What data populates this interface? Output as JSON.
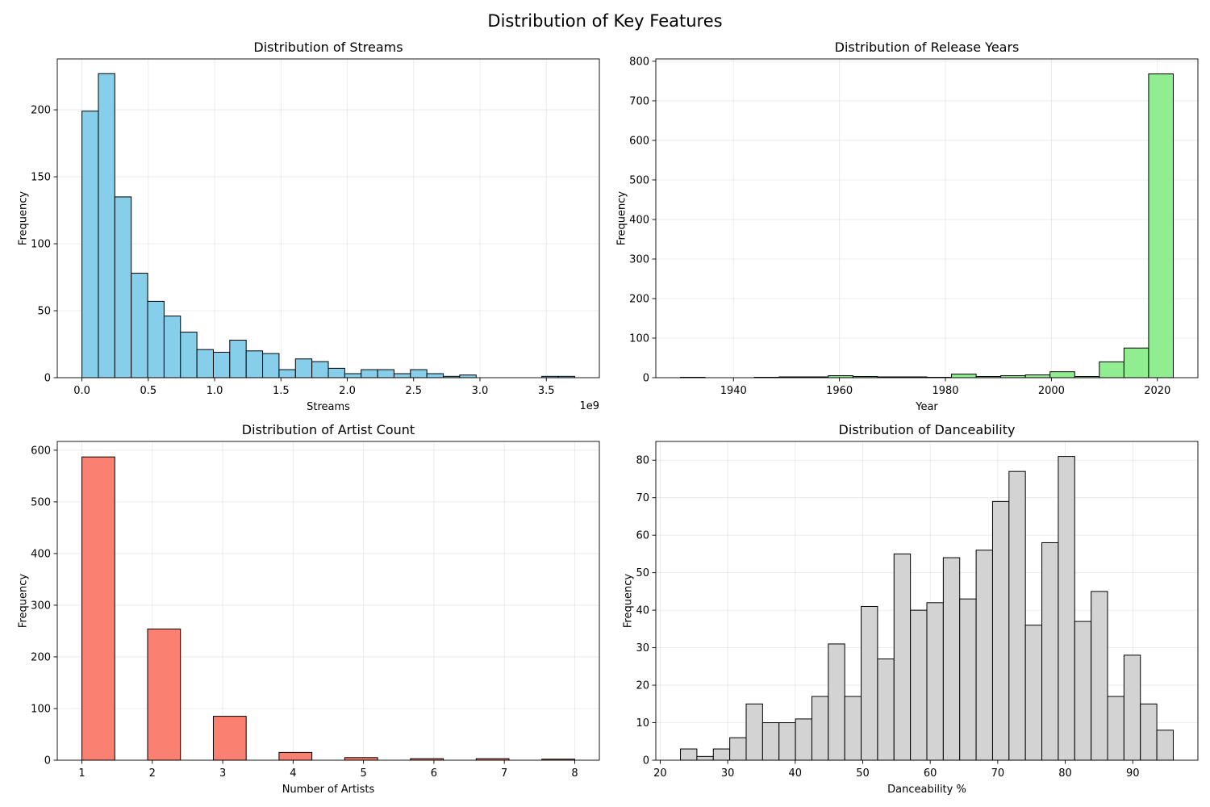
{
  "figure": {
    "title": "Distribution of Key Features"
  },
  "chart_data": [
    {
      "type": "bar",
      "title": "Distribution of Streams",
      "xlabel": "Streams",
      "ylabel": "Frequency",
      "x_offset_label": "1e9",
      "bin_edges": [
        0.0,
        0.1238,
        0.2476,
        0.3714,
        0.4952,
        0.619,
        0.7428,
        0.8666,
        0.9904,
        1.1142,
        1.238,
        1.3618,
        1.4856,
        1.6094,
        1.7332,
        1.857,
        1.9808,
        2.1046,
        2.2284,
        2.3522,
        2.476,
        2.5998,
        2.7236,
        2.8474,
        2.9712,
        3.095,
        3.2188,
        3.3426,
        3.4664,
        3.5902,
        3.714
      ],
      "values": [
        199,
        227,
        135,
        78,
        57,
        46,
        34,
        21,
        19,
        28,
        20,
        18,
        6,
        14,
        12,
        7,
        3,
        6,
        6,
        3,
        6,
        3,
        1,
        2,
        0,
        0,
        0,
        0,
        1,
        1
      ],
      "xlim": [
        -0.186,
        3.9
      ],
      "ylim": [
        0,
        238
      ],
      "xticks": [
        0.0,
        0.5,
        1.0,
        1.5,
        2.0,
        2.5,
        3.0,
        3.5
      ],
      "xtick_labels": [
        "0.0",
        "0.5",
        "1.0",
        "1.5",
        "2.0",
        "2.5",
        "3.0",
        "3.5"
      ],
      "yticks": [
        0,
        50,
        100,
        150,
        200
      ],
      "color": "#87ceeb",
      "grid": true
    },
    {
      "type": "bar",
      "title": "Distribution of Release Years",
      "xlabel": "Year",
      "ylabel": "Frequency",
      "bin_edges": [
        1930,
        1934.65,
        1939.3,
        1943.95,
        1948.6,
        1953.25,
        1957.9,
        1962.55,
        1967.2,
        1971.85,
        1976.5,
        1981.15,
        1985.8,
        1990.45,
        1995.1,
        1999.75,
        2004.4,
        2009.05,
        2013.7,
        2018.35,
        2023
      ],
      "values": [
        1,
        0,
        0,
        1,
        2,
        2,
        5,
        3,
        2,
        2,
        1,
        9,
        3,
        5,
        7,
        15,
        3,
        40,
        75,
        768
      ],
      "xlim": [
        1925.35,
        2027.65
      ],
      "ylim": [
        0,
        806
      ],
      "xticks": [
        1940,
        1960,
        1980,
        2000,
        2020
      ],
      "xtick_labels": [
        "1940",
        "1960",
        "1980",
        "2000",
        "2020"
      ],
      "yticks": [
        0,
        100,
        200,
        300,
        400,
        500,
        600,
        700,
        800
      ],
      "color": "#90ee90",
      "grid": true
    },
    {
      "type": "bar",
      "title": "Distribution of Artist Count",
      "xlabel": "Number of Artists",
      "ylabel": "Frequency",
      "bin_edges": [
        1.0,
        1.4667,
        1.9333,
        2.4,
        2.8667,
        3.3333,
        3.8,
        4.2667,
        4.7333,
        5.2,
        5.6667,
        6.1333,
        6.6,
        7.0667,
        7.5333,
        8.0
      ],
      "values": [
        587,
        0,
        254,
        0,
        85,
        0,
        15,
        0,
        5,
        0,
        3,
        0,
        3,
        0,
        2
      ],
      "xlim": [
        0.65,
        8.35
      ],
      "ylim": [
        0,
        617
      ],
      "xticks": [
        1,
        2,
        3,
        4,
        5,
        6,
        7,
        8
      ],
      "xtick_labels": [
        "1",
        "2",
        "3",
        "4",
        "5",
        "6",
        "7",
        "8"
      ],
      "yticks": [
        0,
        100,
        200,
        300,
        400,
        500,
        600
      ],
      "color": "#fa8072",
      "grid": true
    },
    {
      "type": "bar",
      "title": "Distribution of Danceability",
      "xlabel": "Danceability %",
      "ylabel": "Frequency",
      "bin_edges": [
        23.0,
        25.4333,
        27.8667,
        30.3,
        32.7333,
        35.1667,
        37.6,
        40.0333,
        42.4667,
        44.9,
        47.3333,
        49.7667,
        52.2,
        54.6333,
        57.0667,
        59.5,
        61.9333,
        64.3667,
        66.8,
        69.2333,
        71.6667,
        74.1,
        76.5333,
        78.9667,
        81.4,
        83.8333,
        86.2667,
        88.7,
        91.1333,
        93.5667,
        96.0
      ],
      "values": [
        3,
        1,
        3,
        6,
        15,
        10,
        10,
        11,
        17,
        31,
        17,
        41,
        27,
        55,
        40,
        42,
        54,
        43,
        56,
        69,
        77,
        36,
        58,
        81,
        37,
        45,
        17,
        28,
        15,
        8
      ],
      "xlim": [
        19.35,
        99.65
      ],
      "ylim": [
        0,
        85
      ],
      "xticks": [
        20,
        30,
        40,
        50,
        60,
        70,
        80,
        90
      ],
      "xtick_labels": [
        "20",
        "30",
        "40",
        "50",
        "60",
        "70",
        "80",
        "90"
      ],
      "yticks": [
        0,
        10,
        20,
        30,
        40,
        50,
        60,
        70,
        80
      ],
      "color": "#d3d3d3",
      "grid": true
    }
  ]
}
